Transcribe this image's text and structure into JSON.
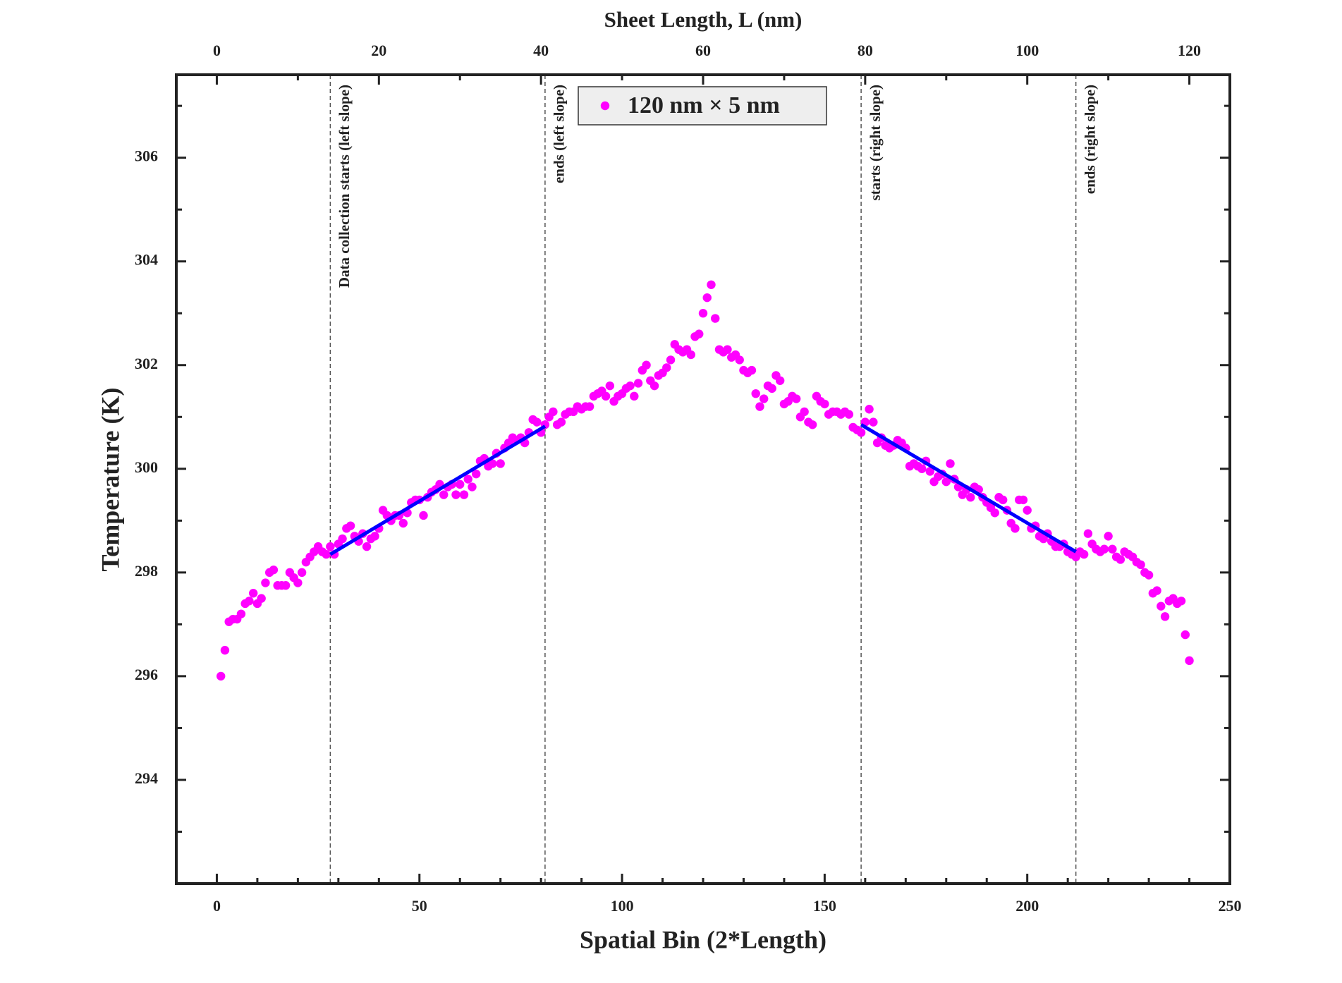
{
  "chart_data": {
    "type": "scatter",
    "title": "Sheet Length, L (nm)",
    "x_label": "Spatial Bin (2*Length)",
    "y_label": "Temperature (K)",
    "xlim": [
      -10,
      250
    ],
    "xticks": [
      0,
      50,
      100,
      150,
      200,
      250
    ],
    "xticks_minor": [
      10,
      20,
      30,
      40,
      60,
      70,
      80,
      90,
      110,
      120,
      130,
      140,
      160,
      170,
      180,
      190,
      210,
      220,
      230,
      240
    ],
    "x2lim": [
      -5,
      125
    ],
    "x2ticks": [
      0,
      20,
      40,
      60,
      80,
      100,
      120
    ],
    "x2ticks_minor": [
      10,
      30,
      50,
      70,
      90,
      110
    ],
    "ylim": [
      292,
      307.6
    ],
    "yticks": [
      294,
      296,
      298,
      300,
      302,
      304,
      306
    ],
    "yticks_minor": [
      293,
      295,
      297,
      299,
      301,
      303,
      305,
      307
    ],
    "legend": "upper center",
    "series": [
      {
        "name": "120 nm × 5 nm",
        "color": "#ff00ff",
        "x": [
          1,
          2,
          3,
          4,
          5,
          6,
          7,
          8,
          9,
          10,
          11,
          12,
          13,
          14,
          15,
          16,
          17,
          18,
          19,
          20,
          21,
          22,
          23,
          24,
          25,
          26,
          27,
          28,
          29,
          30,
          31,
          32,
          33,
          34,
          35,
          36,
          37,
          38,
          39,
          40,
          41,
          42,
          43,
          44,
          45,
          46,
          47,
          48,
          49,
          50,
          51,
          52,
          53,
          54,
          55,
          56,
          57,
          58,
          59,
          60,
          61,
          62,
          63,
          64,
          65,
          66,
          67,
          68,
          69,
          70,
          71,
          72,
          73,
          74,
          75,
          76,
          77,
          78,
          79,
          80,
          81,
          82,
          83,
          84,
          85,
          86,
          87,
          88,
          89,
          90,
          91,
          92,
          93,
          94,
          95,
          96,
          97,
          98,
          99,
          100,
          101,
          102,
          103,
          104,
          105,
          106,
          107,
          108,
          109,
          110,
          111,
          112,
          113,
          114,
          115,
          116,
          117,
          118,
          119,
          120,
          121,
          122,
          123,
          124,
          125,
          126,
          127,
          128,
          129,
          130,
          131,
          132,
          133,
          134,
          135,
          136,
          137,
          138,
          139,
          140,
          141,
          142,
          143,
          144,
          145,
          146,
          147,
          148,
          149,
          150,
          151,
          152,
          153,
          154,
          155,
          156,
          157,
          158,
          159,
          160,
          161,
          162,
          163,
          164,
          165,
          166,
          167,
          168,
          169,
          170,
          171,
          172,
          173,
          174,
          175,
          176,
          177,
          178,
          179,
          180,
          181,
          182,
          183,
          184,
          185,
          186,
          187,
          188,
          189,
          190,
          191,
          192,
          193,
          194,
          195,
          196,
          197,
          198,
          199,
          200,
          201,
          202,
          203,
          204,
          205,
          206,
          207,
          208,
          209,
          210,
          211,
          212,
          213,
          214,
          215,
          216,
          217,
          218,
          219,
          220,
          221,
          222,
          223,
          224,
          225,
          226,
          227,
          228,
          229,
          230,
          231,
          232,
          233,
          234,
          235,
          236,
          237,
          238,
          239,
          240
        ],
        "values": [
          296.0,
          296.5,
          297.05,
          297.1,
          297.1,
          297.2,
          297.4,
          297.45,
          297.6,
          297.4,
          297.5,
          297.8,
          298.0,
          298.05,
          297.75,
          297.75,
          297.75,
          298.0,
          297.9,
          297.8,
          298.0,
          298.2,
          298.3,
          298.4,
          298.5,
          298.4,
          298.35,
          298.5,
          298.35,
          298.55,
          298.65,
          298.85,
          298.9,
          298.7,
          298.6,
          298.75,
          298.5,
          298.65,
          298.7,
          298.85,
          299.2,
          299.1,
          299.0,
          299.1,
          299.1,
          298.95,
          299.15,
          299.35,
          299.4,
          299.4,
          299.1,
          299.45,
          299.55,
          299.6,
          299.7,
          299.5,
          299.65,
          299.7,
          299.5,
          299.7,
          299.5,
          299.8,
          299.65,
          299.9,
          300.15,
          300.2,
          300.05,
          300.1,
          300.3,
          300.1,
          300.4,
          300.5,
          300.6,
          300.55,
          300.6,
          300.5,
          300.7,
          300.95,
          300.9,
          300.7,
          300.85,
          301.0,
          301.1,
          300.85,
          300.9,
          301.05,
          301.1,
          301.1,
          301.2,
          301.15,
          301.2,
          301.2,
          301.4,
          301.45,
          301.5,
          301.4,
          301.6,
          301.3,
          301.4,
          301.45,
          301.55,
          301.6,
          301.4,
          301.65,
          301.9,
          302.0,
          301.7,
          301.6,
          301.8,
          301.85,
          301.95,
          302.1,
          302.4,
          302.3,
          302.25,
          302.3,
          302.2,
          302.55,
          302.6,
          303.0,
          303.3,
          303.55,
          302.9,
          302.3,
          302.25,
          302.3,
          302.15,
          302.2,
          302.1,
          301.9,
          301.85,
          301.9,
          301.45,
          301.2,
          301.35,
          301.6,
          301.55,
          301.8,
          301.7,
          301.25,
          301.3,
          301.4,
          301.35,
          301.0,
          301.1,
          300.9,
          300.85,
          301.4,
          301.3,
          301.25,
          301.05,
          301.1,
          301.1,
          301.05,
          301.1,
          301.05,
          300.8,
          300.75,
          300.7,
          300.9,
          301.15,
          300.9,
          300.5,
          300.6,
          300.45,
          300.4,
          300.45,
          300.55,
          300.5,
          300.4,
          300.05,
          300.1,
          300.05,
          300.0,
          300.15,
          299.95,
          299.75,
          299.85,
          299.9,
          299.75,
          300.1,
          299.8,
          299.65,
          299.5,
          299.6,
          299.45,
          299.65,
          299.6,
          299.45,
          299.35,
          299.25,
          299.15,
          299.45,
          299.4,
          299.2,
          298.95,
          298.85,
          299.4,
          299.4,
          299.2,
          298.85,
          298.9,
          298.7,
          298.65,
          298.75,
          298.6,
          298.5,
          298.5,
          298.55,
          298.4,
          298.35,
          298.3,
          298.4,
          298.35,
          298.75,
          298.55,
          298.45,
          298.4,
          298.45,
          298.7,
          298.45,
          298.3,
          298.25,
          298.4,
          298.35,
          298.3,
          298.2,
          298.15,
          298.0,
          297.95,
          297.6,
          297.65,
          297.35,
          297.15,
          297.45,
          297.5,
          297.4,
          297.45,
          296.8,
          296.3
        ]
      }
    ],
    "fits": [
      {
        "color": "#0000ff",
        "x": [
          28,
          81
        ],
        "values": [
          298.35,
          300.82
        ]
      },
      {
        "color": "#0000ff",
        "x": [
          159,
          212
        ],
        "values": [
          300.85,
          298.4
        ]
      }
    ],
    "vlines": [
      {
        "x": 28,
        "label": "Data collection starts (left slope)"
      },
      {
        "x": 81,
        "label": "ends (left slope)"
      },
      {
        "x": 159,
        "label": "starts (right slope)"
      },
      {
        "x": 212,
        "label": "ends (right slope)"
      }
    ]
  }
}
